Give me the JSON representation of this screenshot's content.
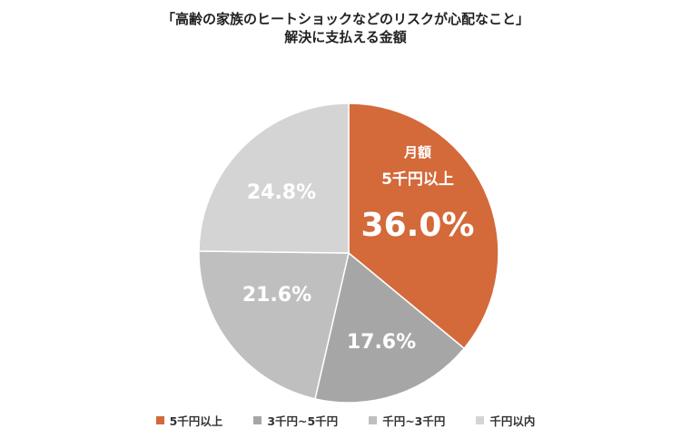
{
  "title": {
    "line1": "「高齢の家族のヒートショックなどのリスクが心配なこと」",
    "line2": "解決に支払える金額"
  },
  "labels": {
    "main_prefix1": "月額",
    "main_prefix2": "5千円以上",
    "main_value": "36.0%",
    "s2": "17.6%",
    "s3": "21.6%",
    "s4": "24.8%"
  },
  "legend": [
    {
      "label": "5千円以上",
      "color": "#D4693A"
    },
    {
      "label": "3千円~5千円",
      "color": "#A6A6A6"
    },
    {
      "label": "千円~3千円",
      "color": "#BFBFBF"
    },
    {
      "label": "千円以内",
      "color": "#D4D4D4"
    }
  ],
  "chart_data": {
    "type": "pie",
    "title": "「高齢の家族のヒートショックなどのリスクが心配なこと」解決に支払える金額",
    "categories": [
      "5千円以上",
      "3千円~5千円",
      "千円~3千円",
      "千円以内"
    ],
    "values": [
      36.0,
      17.6,
      21.6,
      24.8
    ],
    "unit": "%",
    "colors": [
      "#D4693A",
      "#A6A6A6",
      "#BFBFBF",
      "#D4D4D4"
    ],
    "start_angle": "12 o'clock, clockwise",
    "legend_position": "bottom",
    "annotations": [
      "月額 5千円以上 36.0%"
    ]
  }
}
